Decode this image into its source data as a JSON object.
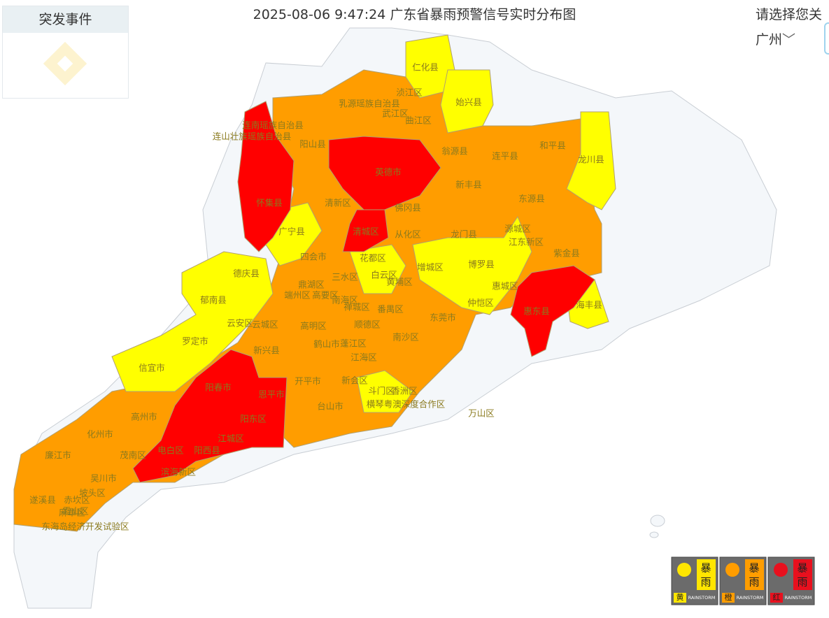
{
  "title": "2025-08-06 9:47:24 广东省暴雨预警信号实时分布图",
  "panel": {
    "title": "突发事件"
  },
  "selector": {
    "prompt": "请选择您关",
    "city": "广州"
  },
  "legend": [
    {
      "top": "暴",
      "bottom": "雨",
      "level": "黄",
      "en": "RAINSTORM"
    },
    {
      "top": "暴",
      "bottom": "雨",
      "level": "橙",
      "en": "RAINSTORM"
    },
    {
      "top": "暴",
      "bottom": "雨",
      "level": "红",
      "en": "RAINSTORM"
    }
  ],
  "labels": [
    "仁化县",
    "始兴县",
    "浈江区",
    "乳源瑶族自治县",
    "武江区",
    "曲江区",
    "连南瑶族自治县",
    "连山壮族瑶族自治县",
    "阳山县",
    "翁源县",
    "连平县",
    "和平县",
    "龙川县",
    "英德市",
    "新丰县",
    "怀集县",
    "清新区",
    "东源县",
    "佛冈县",
    "广宁县",
    "清城区",
    "从化区",
    "龙门县",
    "源城区",
    "江东新区",
    "紫金县",
    "四会市",
    "花都区",
    "增城区",
    "博罗县",
    "德庆县",
    "白云区",
    "鼎湖区",
    "三水区",
    "黄埔区",
    "惠城区",
    "郁南县",
    "端州区",
    "高要区",
    "南海区",
    "番禺区",
    "仲恺区",
    "惠东县",
    "海丰县",
    "禅城区",
    "东莞市",
    "云安区",
    "云城区",
    "高明区",
    "顺德区",
    "罗定市",
    "南沙区",
    "鹤山市",
    "蓬江区",
    "江海区",
    "新兴县",
    "信宜市",
    "阳春市",
    "开平市",
    "新会区",
    "斗门区",
    "香洲区",
    "恩平市",
    "台山市",
    "高州市",
    "横琴粤澳深度合作区",
    "万山区",
    "阳东区",
    "化州市",
    "江城区",
    "电白区",
    "阳西县",
    "廉江市",
    "茂南区",
    "吴川市",
    "滨海新区",
    "遂溪县",
    "坡头区",
    "赤坎区",
    "霞山区",
    "麻章区",
    "东海岛经济开发试验区"
  ]
}
